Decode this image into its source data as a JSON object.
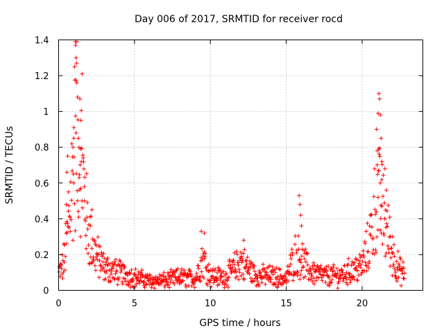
{
  "chart_data": {
    "type": "scatter",
    "title": "Day 006 of 2017, SRMTID for receiver rocd",
    "xlabel": "GPS time / hours",
    "ylabel": "SRMTID / TECUs",
    "xlim": [
      0,
      24
    ],
    "ylim": [
      0,
      1.4
    ],
    "xticks": [
      0,
      5,
      10,
      15,
      20
    ],
    "yticks": [
      0,
      0.2,
      0.4,
      0.6,
      0.8,
      1,
      1.2,
      1.4
    ],
    "xtick_labels": [
      "0",
      "5",
      "10",
      "15",
      "20"
    ],
    "ytick_labels": [
      "0",
      "0.2",
      "0.4",
      "0.6",
      "0.8",
      "1",
      "1.2",
      "1.4"
    ],
    "grid": true,
    "marker": "+",
    "color": "#ff0000",
    "series": [
      {
        "name": "SRMTID",
        "profile": [
          [
            0.0,
            0.1
          ],
          [
            0.3,
            0.15
          ],
          [
            0.6,
            0.35
          ],
          [
            0.9,
            0.7
          ],
          [
            1.2,
            1.0
          ],
          [
            1.4,
            0.9
          ],
          [
            1.6,
            0.7
          ],
          [
            1.9,
            0.4
          ],
          [
            2.3,
            0.25
          ],
          [
            3.0,
            0.14
          ],
          [
            4.0,
            0.11
          ],
          [
            5.0,
            0.08
          ],
          [
            6.0,
            0.06
          ],
          [
            7.0,
            0.06
          ],
          [
            8.0,
            0.08
          ],
          [
            9.0,
            0.07
          ],
          [
            9.5,
            0.2
          ],
          [
            10.0,
            0.09
          ],
          [
            11.0,
            0.08
          ],
          [
            12.0,
            0.18
          ],
          [
            13.0,
            0.09
          ],
          [
            14.0,
            0.09
          ],
          [
            15.0,
            0.07
          ],
          [
            15.6,
            0.22
          ],
          [
            16.0,
            0.2
          ],
          [
            16.5,
            0.12
          ],
          [
            17.5,
            0.09
          ],
          [
            18.5,
            0.09
          ],
          [
            19.5,
            0.13
          ],
          [
            20.0,
            0.15
          ],
          [
            20.5,
            0.3
          ],
          [
            21.0,
            0.6
          ],
          [
            21.3,
            0.5
          ],
          [
            21.7,
            0.35
          ],
          [
            22.0,
            0.22
          ],
          [
            22.5,
            0.12
          ],
          [
            22.8,
            0.1
          ]
        ],
        "spikes": [
          [
            1.1,
            1.39
          ],
          [
            1.12,
            1.37
          ],
          [
            1.15,
            1.3
          ],
          [
            1.18,
            1.27
          ],
          [
            1.05,
            1.25
          ],
          [
            1.2,
            1.16
          ],
          [
            1.55,
            1.21
          ],
          [
            1.4,
            1.07
          ],
          [
            1.0,
            0.91
          ],
          [
            1.15,
            0.88
          ],
          [
            1.3,
            0.85
          ],
          [
            1.45,
            0.79
          ],
          [
            0.95,
            0.8
          ],
          [
            0.6,
            0.75
          ],
          [
            1.5,
            0.72
          ],
          [
            0.55,
            0.66
          ],
          [
            1.35,
            0.63
          ],
          [
            1.0,
            0.6
          ],
          [
            0.65,
            0.55
          ],
          [
            1.45,
            0.57
          ],
          [
            0.5,
            0.48
          ],
          [
            1.25,
            0.5
          ],
          [
            1.7,
            0.5
          ],
          [
            2.2,
            0.45
          ],
          [
            9.4,
            0.33
          ],
          [
            9.6,
            0.32
          ],
          [
            15.85,
            0.53
          ],
          [
            15.9,
            0.48
          ],
          [
            15.95,
            0.42
          ],
          [
            16.0,
            0.36
          ],
          [
            21.1,
            1.1
          ],
          [
            21.15,
            1.07
          ],
          [
            21.05,
            0.99
          ],
          [
            21.2,
            0.98
          ],
          [
            20.95,
            0.9
          ],
          [
            21.25,
            0.85
          ],
          [
            21.0,
            0.78
          ],
          [
            21.3,
            0.72
          ],
          [
            21.1,
            0.67
          ],
          [
            21.5,
            0.68
          ],
          [
            21.2,
            0.6
          ],
          [
            21.6,
            0.56
          ],
          [
            21.05,
            0.52
          ],
          [
            21.3,
            0.47
          ],
          [
            21.5,
            0.4
          ],
          [
            12.2,
            0.28
          ],
          [
            22.0,
            0.3
          ]
        ]
      }
    ]
  }
}
